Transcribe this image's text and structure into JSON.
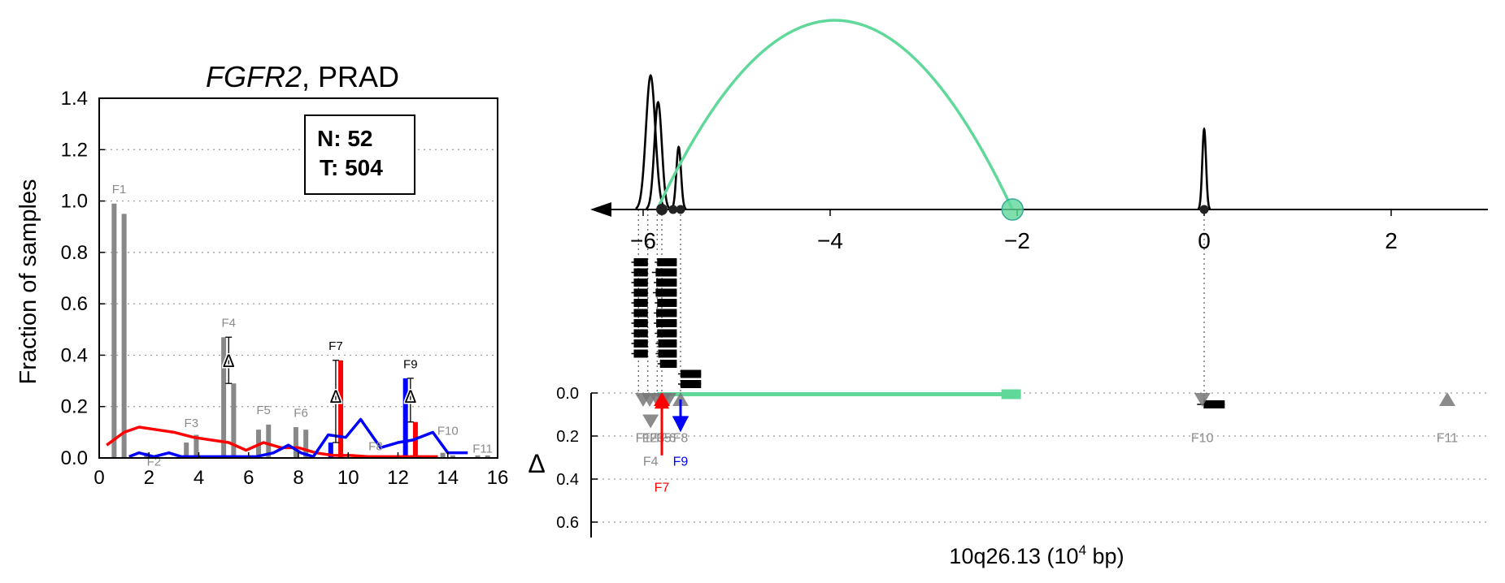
{
  "chart_data": [
    {
      "type": "bar",
      "title_gene": "FGFR2",
      "title_rest": ", PRAD",
      "ylabel": "Fraction of samples",
      "xlim": [
        0,
        16
      ],
      "ylim": [
        0,
        1.4
      ],
      "xticks": [
        0,
        2,
        4,
        6,
        8,
        10,
        12,
        14,
        16
      ],
      "yticks": [
        "0.0",
        "0.2",
        "0.4",
        "0.6",
        "0.8",
        "1.0",
        "1.2",
        "1.4"
      ],
      "legend_box": {
        "n_label": "N: 52",
        "t_label": "T: 504",
        "placement": "top-right"
      },
      "colors": {
        "grey": "#888888",
        "red": "#ff0000",
        "blue": "#0000ff",
        "green": "#5fd89a"
      },
      "bars": [
        {
          "x": 0.6,
          "v": 0.99,
          "c": "grey"
        },
        {
          "x": 1.0,
          "v": 0.95,
          "c": "grey"
        },
        {
          "x": 1.9,
          "v": 0.02,
          "c": "grey"
        },
        {
          "x": 2.3,
          "v": 0.01,
          "c": "grey"
        },
        {
          "x": 3.5,
          "v": 0.06,
          "c": "grey"
        },
        {
          "x": 3.9,
          "v": 0.09,
          "c": "grey"
        },
        {
          "x": 5.0,
          "v": 0.47,
          "c": "grey"
        },
        {
          "x": 5.4,
          "v": 0.29,
          "c": "grey"
        },
        {
          "x": 6.4,
          "v": 0.11,
          "c": "grey"
        },
        {
          "x": 6.8,
          "v": 0.13,
          "c": "grey"
        },
        {
          "x": 7.9,
          "v": 0.12,
          "c": "grey"
        },
        {
          "x": 8.3,
          "v": 0.11,
          "c": "grey"
        },
        {
          "x": 9.3,
          "v": 0.06,
          "c": "blue"
        },
        {
          "x": 9.7,
          "v": 0.38,
          "c": "red"
        },
        {
          "x": 10.9,
          "v": 0.01,
          "c": "grey"
        },
        {
          "x": 11.3,
          "v": 0.01,
          "c": "grey"
        },
        {
          "x": 12.3,
          "v": 0.31,
          "c": "blue"
        },
        {
          "x": 12.7,
          "v": 0.14,
          "c": "red"
        },
        {
          "x": 13.8,
          "v": 0.02,
          "c": "grey"
        },
        {
          "x": 14.2,
          "v": 0.01,
          "c": "grey"
        },
        {
          "x": 15.2,
          "v": 0.01,
          "c": "grey"
        },
        {
          "x": 15.6,
          "v": 0.01,
          "c": "grey"
        }
      ],
      "feature_labels": [
        {
          "t": "F1",
          "x": 0.8,
          "y": 1.03,
          "dark": false
        },
        {
          "t": "F2",
          "x": 2.2,
          "y": -0.03,
          "dark": false
        },
        {
          "t": "F3",
          "x": 3.7,
          "y": 0.12,
          "dark": false
        },
        {
          "t": "F4",
          "x": 5.2,
          "y": 0.51,
          "dark": false
        },
        {
          "t": "F5",
          "x": 6.6,
          "y": 0.17,
          "dark": false
        },
        {
          "t": "F6",
          "x": 8.1,
          "y": 0.16,
          "dark": false
        },
        {
          "t": "F7",
          "x": 9.5,
          "y": 0.42,
          "dark": true
        },
        {
          "t": "F8",
          "x": 11.1,
          "y": 0.03,
          "dark": false
        },
        {
          "t": "F9",
          "x": 12.5,
          "y": 0.35,
          "dark": true
        },
        {
          "t": "F10",
          "x": 14.0,
          "y": 0.09,
          "dark": false
        },
        {
          "t": "F11",
          "x": 15.4,
          "y": 0.02,
          "dark": false
        }
      ],
      "delta_markers": [
        {
          "x": 5.2,
          "y": 0.38,
          "hi": 0.47,
          "lo": 0.29
        },
        {
          "x": 9.5,
          "y": 0.24,
          "hi": 0.38,
          "lo": 0.06
        },
        {
          "x": 12.5,
          "y": 0.24,
          "hi": 0.31,
          "lo": 0.14
        }
      ],
      "delta_symbol": "Δ",
      "series": [
        {
          "color": "red",
          "x": [
            0.3,
            1.0,
            1.6,
            2.3,
            3.0,
            3.8,
            4.5,
            5.2,
            5.9,
            6.6,
            7.3,
            8.0,
            8.7,
            9.4,
            10.1,
            10.8,
            11.5,
            12.2,
            12.9,
            13.6
          ],
          "y": [
            0.05,
            0.1,
            0.12,
            0.11,
            0.1,
            0.08,
            0.07,
            0.06,
            0.03,
            0.06,
            0.04,
            0.04,
            0.02,
            0.01,
            0.01,
            0.005,
            0.005,
            0.005,
            0.005,
            0.005
          ]
        },
        {
          "color": "blue",
          "x": [
            1.2,
            1.6,
            2.2,
            2.8,
            3.3,
            4.0,
            4.8,
            5.5,
            6.3,
            7.0,
            7.6,
            8.1,
            8.6,
            9.2,
            9.9,
            10.5,
            11.3,
            12.0,
            12.6,
            13.4,
            14.0,
            14.8
          ],
          "y": [
            0.005,
            0.02,
            0.005,
            0.02,
            0.005,
            0.005,
            0.005,
            0.005,
            0.005,
            0.02,
            0.05,
            0.02,
            0.005,
            0.09,
            0.08,
            0.15,
            0.04,
            0.06,
            0.07,
            0.1,
            0.02,
            0.02
          ]
        }
      ]
    },
    {
      "type": "line",
      "xlabel_main": "10q26.13 (10",
      "xlabel_sup": "4",
      "xlabel_tail": " bp)",
      "xlim": [
        -6.4,
        3.2
      ],
      "xticks": [
        {
          "v": -6,
          "t": "−6"
        },
        {
          "v": -4,
          "t": "−4"
        },
        {
          "v": -2,
          "t": "−2"
        },
        {
          "v": 0,
          "t": "0"
        },
        {
          "v": 2,
          "t": "2"
        }
      ],
      "delta_axis": {
        "label": "Δ",
        "ylim": [
          0.0,
          0.7
        ],
        "yticks": [
          {
            "v": 0.0,
            "t": "0.0"
          },
          {
            "v": 0.2,
            "t": "0.2"
          },
          {
            "v": 0.4,
            "t": "0.4"
          },
          {
            "v": 0.6,
            "t": "0.6"
          }
        ]
      },
      "peaks": [
        {
          "x": -5.92,
          "h": 0.75,
          "w": 0.05
        },
        {
          "x": -5.84,
          "h": 0.6,
          "w": 0.04
        },
        {
          "x": -5.62,
          "h": 0.35,
          "w": 0.025
        },
        {
          "x": 0.0,
          "h": 0.45,
          "w": 0.02
        }
      ],
      "junction_dots": [
        -5.8,
        -5.68,
        -5.6,
        0.0
      ],
      "arc": {
        "x0": -5.85,
        "x1": -2.05,
        "height": 1.0
      },
      "green_marker_x": -2.05,
      "exon_blocks": [
        {
          "x0": -6.1,
          "x1": -5.95,
          "row": 0
        },
        {
          "x0": -5.85,
          "x1": -5.64,
          "row": 0
        },
        {
          "x0": -6.1,
          "x1": -5.95,
          "row": 1
        },
        {
          "x0": -5.88,
          "x1": -5.64,
          "row": 1
        },
        {
          "x0": -6.1,
          "x1": -5.95,
          "row": 2
        },
        {
          "x0": -5.86,
          "x1": -5.64,
          "row": 2
        },
        {
          "x0": -6.1,
          "x1": -5.95,
          "row": 3
        },
        {
          "x0": -5.87,
          "x1": -5.64,
          "row": 3
        },
        {
          "x0": -6.1,
          "x1": -5.95,
          "row": 4
        },
        {
          "x0": -5.85,
          "x1": -5.64,
          "row": 4
        },
        {
          "x0": -6.1,
          "x1": -5.95,
          "row": 5
        },
        {
          "x0": -5.86,
          "x1": -5.64,
          "row": 5
        },
        {
          "x0": -6.1,
          "x1": -5.95,
          "row": 6
        },
        {
          "x0": -5.86,
          "x1": -5.64,
          "row": 6
        },
        {
          "x0": -6.1,
          "x1": -5.95,
          "row": 7
        },
        {
          "x0": -5.85,
          "x1": -5.64,
          "row": 7
        },
        {
          "x0": -6.1,
          "x1": -5.95,
          "row": 8
        },
        {
          "x0": -5.84,
          "x1": -5.64,
          "row": 8
        },
        {
          "x0": -6.1,
          "x1": -5.95,
          "row": 9
        },
        {
          "x0": -5.84,
          "x1": -5.64,
          "row": 9
        },
        {
          "x0": -5.82,
          "x1": -5.64,
          "row": 10
        },
        {
          "x0": -5.6,
          "x1": -5.38,
          "row": 11
        },
        {
          "x0": -5.6,
          "x1": -5.38,
          "row": 12
        },
        {
          "x0": -0.05,
          "x1": 0.22,
          "row": 14
        }
      ],
      "green_transcript": {
        "x0": -5.85,
        "x1": -1.96,
        "row": 13
      },
      "delta_markers": [
        {
          "t": "F1",
          "x": -6.0,
          "d": 0.03,
          "dir": "down",
          "label_y": 0.19,
          "color": "grey"
        },
        {
          "t": "F2",
          "x": -5.93,
          "d": 0.03,
          "dir": "down",
          "label_y": 0.19,
          "color": "grey"
        },
        {
          "t": "F3",
          "x": -5.85,
          "d": 0.03,
          "dir": "down",
          "label_y": 0.19,
          "color": "grey"
        },
        {
          "t": "F6",
          "x": -5.73,
          "d": 0.03,
          "dir": "down",
          "label_y": 0.19,
          "color": "grey"
        },
        {
          "t": "F5",
          "x": -5.78,
          "d": 0.03,
          "dir": "down",
          "label_y": 0.19,
          "color": "grey"
        },
        {
          "t": "F8",
          "x": -5.6,
          "d": 0.03,
          "dir": "up",
          "label_y": 0.19,
          "color": "grey"
        },
        {
          "t": "F4",
          "x": -5.92,
          "d": 0.13,
          "dir": "down",
          "label_y": 0.3,
          "color": "grey"
        },
        {
          "t": "F9",
          "x": -5.6,
          "d": 0.14,
          "dir": "down",
          "label_y": 0.3,
          "color": "blue"
        },
        {
          "t": "F7",
          "x": -5.8,
          "d": 0.03,
          "dir": "up",
          "label_y": 0.42,
          "color": "red"
        },
        {
          "t": "F10",
          "x": -0.02,
          "d": 0.03,
          "dir": "down",
          "label_y": 0.19,
          "color": "grey"
        },
        {
          "t": "F11",
          "x": 2.6,
          "d": 0.03,
          "dir": "up",
          "label_y": 0.19,
          "color": "grey"
        }
      ],
      "red_arrow": {
        "x": -5.8,
        "from": 0.29,
        "to": 0.02
      },
      "blue_arrow": {
        "x": -5.6,
        "from": 0.03,
        "to": 0.16
      }
    }
  ]
}
